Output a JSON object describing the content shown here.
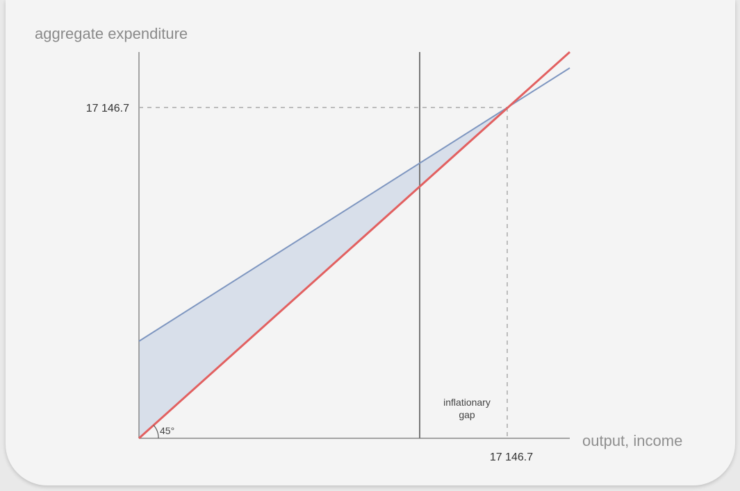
{
  "chart_data": {
    "type": "line",
    "xlabel": "output, income",
    "ylabel": "aggregate expenditure",
    "equilibrium": {
      "x_label": "17 146.7",
      "y_label": "17 146.7"
    },
    "angle_label": "45°",
    "gap_label_line1": "inflationary",
    "gap_label_line2": "gap",
    "series": [
      {
        "color": "#e26060"
      },
      {
        "color": "#7e96c0"
      }
    ],
    "gap_fill_color": "#d5dde9"
  }
}
